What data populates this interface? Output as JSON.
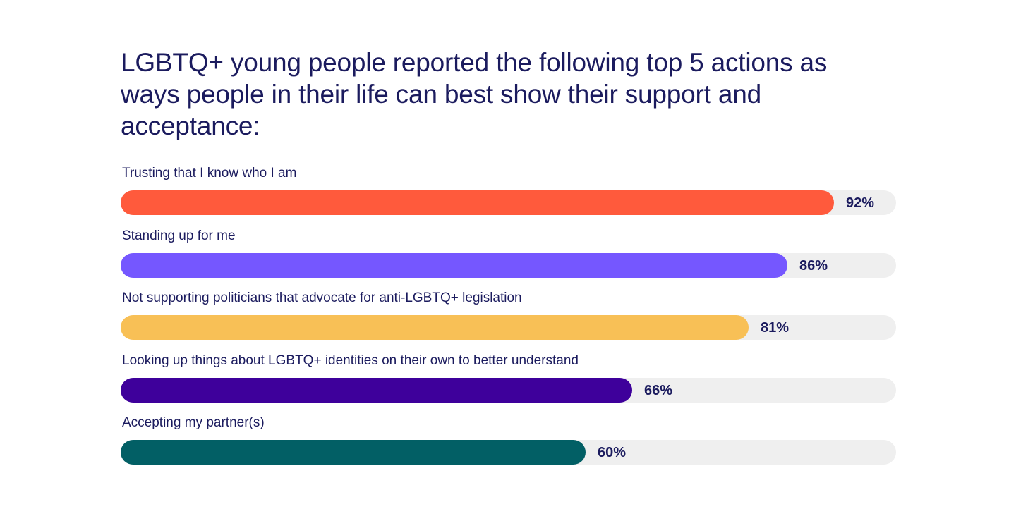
{
  "chart_data": {
    "type": "bar",
    "orientation": "horizontal",
    "title": "LGBTQ+ young people reported the following top 5 actions as ways people in their life can best show their support and acceptance:",
    "categories": [
      "Trusting that I know who I am",
      "Standing up for me",
      "Not supporting politicians that advocate for anti-LGBTQ+ legislation",
      "Looking up things about LGBTQ+ identities on their own to better understand",
      "Accepting my partner(s)"
    ],
    "values": [
      92,
      86,
      81,
      66,
      60
    ],
    "value_labels": [
      "92%",
      "86%",
      "81%",
      "66%",
      "60%"
    ],
    "colors": [
      "#ff5a3c",
      "#7557ff",
      "#f8c056",
      "#3e009b",
      "#025f65"
    ],
    "track_color": "#efefef",
    "xlim": [
      0,
      100
    ],
    "grid": false,
    "legend": "none"
  }
}
